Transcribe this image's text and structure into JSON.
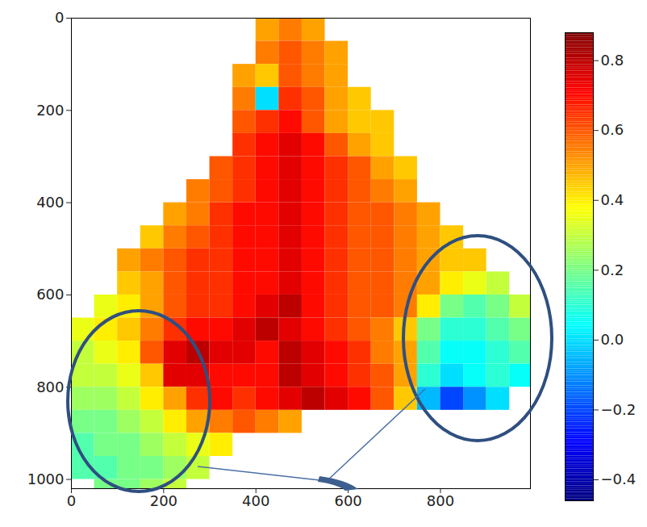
{
  "chart_data": {
    "type": "heatmap",
    "xlim": [
      0,
      995
    ],
    "ylim": [
      1020,
      0
    ],
    "xticks": [
      0,
      200,
      400,
      600,
      800
    ],
    "yticks": [
      0,
      200,
      400,
      600,
      800,
      1000
    ],
    "x_edges": [
      0,
      50,
      100,
      150,
      200,
      250,
      300,
      350,
      400,
      450,
      500,
      550,
      600,
      650,
      700,
      750,
      800,
      850,
      900,
      950,
      1000
    ],
    "y_edges": [
      0,
      50,
      100,
      150,
      200,
      250,
      300,
      350,
      400,
      450,
      500,
      550,
      600,
      650,
      700,
      750,
      800,
      850,
      900,
      950,
      1000,
      1050
    ],
    "values": [
      [
        null,
        null,
        null,
        null,
        null,
        null,
        null,
        null,
        0.5,
        0.55,
        0.5,
        null,
        null,
        null,
        null,
        null,
        null,
        null,
        null,
        null
      ],
      [
        null,
        null,
        null,
        null,
        null,
        null,
        null,
        null,
        0.55,
        0.6,
        0.55,
        0.5,
        null,
        null,
        null,
        null,
        null,
        null,
        null,
        null
      ],
      [
        null,
        null,
        null,
        null,
        null,
        null,
        null,
        0.5,
        0.45,
        0.6,
        0.55,
        0.5,
        null,
        null,
        null,
        null,
        null,
        null,
        null,
        null
      ],
      [
        null,
        null,
        null,
        null,
        null,
        null,
        null,
        0.55,
        0.0,
        0.65,
        0.6,
        0.5,
        0.45,
        null,
        null,
        null,
        null,
        null,
        null,
        null
      ],
      [
        null,
        null,
        null,
        null,
        null,
        null,
        null,
        0.6,
        0.65,
        0.7,
        0.6,
        0.5,
        0.45,
        0.45,
        null,
        null,
        null,
        null,
        null,
        null
      ],
      [
        null,
        null,
        null,
        null,
        null,
        null,
        null,
        0.65,
        0.7,
        0.75,
        0.7,
        0.6,
        0.5,
        0.45,
        null,
        null,
        null,
        null,
        null,
        null
      ],
      [
        null,
        null,
        null,
        null,
        null,
        null,
        0.6,
        0.65,
        0.7,
        0.75,
        0.7,
        0.65,
        0.6,
        0.5,
        0.45,
        null,
        null,
        null,
        null,
        null
      ],
      [
        null,
        null,
        null,
        null,
        null,
        0.55,
        0.6,
        0.65,
        0.7,
        0.75,
        0.7,
        0.65,
        0.6,
        0.55,
        0.5,
        null,
        null,
        null,
        null,
        null
      ],
      [
        null,
        null,
        null,
        null,
        0.5,
        0.55,
        0.65,
        0.7,
        0.7,
        0.75,
        0.7,
        0.65,
        0.6,
        0.6,
        0.55,
        0.5,
        null,
        null,
        null,
        null
      ],
      [
        null,
        null,
        null,
        0.45,
        0.55,
        0.6,
        0.65,
        0.7,
        0.7,
        0.75,
        0.7,
        0.65,
        0.6,
        0.6,
        0.55,
        0.5,
        0.45,
        null,
        null,
        null
      ],
      [
        null,
        null,
        0.5,
        0.55,
        0.6,
        0.65,
        0.65,
        0.7,
        0.7,
        0.75,
        0.7,
        0.65,
        0.6,
        0.6,
        0.55,
        0.5,
        0.45,
        0.45,
        null,
        null
      ],
      [
        null,
        null,
        0.45,
        0.5,
        0.6,
        0.65,
        0.65,
        0.7,
        0.7,
        0.75,
        0.7,
        0.65,
        0.6,
        0.6,
        0.55,
        0.5,
        0.4,
        0.35,
        0.3,
        null
      ],
      [
        null,
        0.35,
        0.4,
        0.5,
        0.6,
        0.65,
        0.65,
        0.7,
        0.75,
        0.8,
        0.7,
        0.65,
        0.6,
        0.6,
        0.55,
        0.4,
        0.2,
        0.15,
        0.2,
        0.3
      ],
      [
        0.35,
        0.4,
        0.45,
        0.55,
        0.65,
        0.7,
        0.7,
        0.75,
        0.8,
        0.75,
        0.7,
        0.65,
        0.6,
        0.55,
        0.45,
        0.2,
        0.1,
        0.1,
        0.15,
        0.2
      ],
      [
        0.3,
        0.35,
        0.4,
        0.6,
        0.75,
        0.8,
        0.75,
        0.75,
        0.7,
        0.8,
        0.75,
        0.7,
        0.65,
        0.55,
        0.5,
        0.15,
        0.05,
        0.05,
        0.1,
        0.15
      ],
      [
        0.3,
        0.3,
        0.35,
        0.45,
        0.75,
        0.75,
        0.7,
        0.7,
        0.7,
        0.8,
        0.75,
        0.7,
        0.65,
        0.6,
        0.5,
        0.1,
        0.0,
        0.05,
        0.1,
        0.05
      ],
      [
        0.25,
        0.25,
        0.3,
        0.4,
        0.5,
        0.65,
        0.7,
        0.65,
        0.7,
        0.75,
        0.8,
        0.75,
        0.7,
        0.6,
        0.45,
        -0.05,
        -0.2,
        -0.1,
        0.0,
        null
      ],
      [
        0.2,
        0.2,
        0.25,
        0.3,
        0.4,
        0.5,
        0.55,
        0.6,
        0.55,
        0.5,
        null,
        null,
        null,
        null,
        null,
        null,
        null,
        null,
        null,
        null
      ],
      [
        0.15,
        0.2,
        0.2,
        0.25,
        0.3,
        0.35,
        0.4,
        null,
        null,
        null,
        null,
        null,
        null,
        null,
        null,
        null,
        null,
        null,
        null,
        null
      ],
      [
        0.15,
        0.15,
        0.2,
        0.2,
        0.25,
        0.3,
        null,
        null,
        null,
        null,
        null,
        null,
        null,
        null,
        null,
        null,
        null,
        null,
        null,
        null
      ],
      [
        null,
        0.2,
        0.2,
        0.25,
        0.3,
        null,
        null,
        null,
        null,
        null,
        null,
        null,
        null,
        null,
        null,
        null,
        null,
        null,
        null,
        null
      ]
    ],
    "colorbar": {
      "lim": [
        -0.46,
        0.88
      ],
      "ticks": [
        {
          "value": -0.4,
          "label": "−0.4"
        },
        {
          "value": -0.2,
          "label": "−0.2"
        },
        {
          "value": 0,
          "label": "0.0"
        },
        0.2,
        0.4,
        0.6,
        0.8
      ]
    },
    "grid": false
  }
}
